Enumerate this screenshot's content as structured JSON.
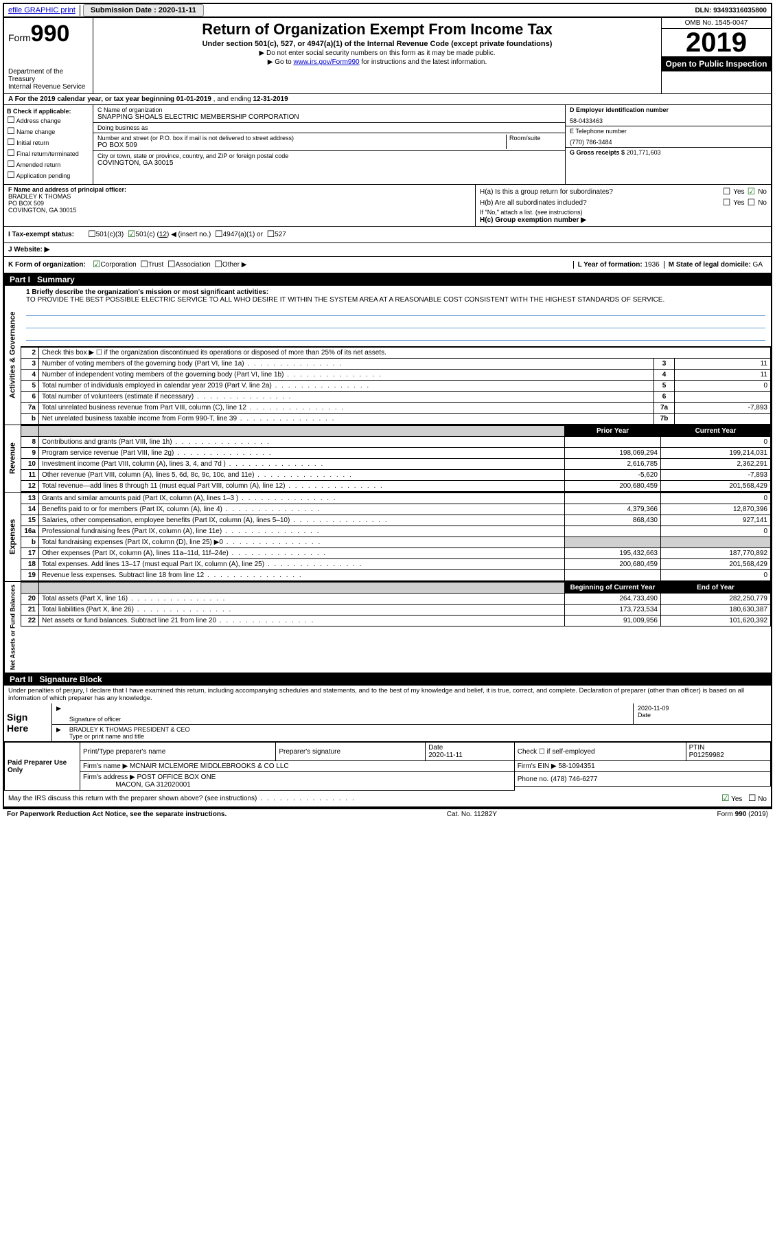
{
  "colors": {
    "link": "#0000cc",
    "rule_blue": "#6aa0d8",
    "shade": "#d0d0d0",
    "check_green": "#1a6b1a"
  },
  "topbar": {
    "efile": "efile GRAPHIC print",
    "submission_label": "Submission Date :",
    "submission_date": "2020-11-11",
    "dln_label": "DLN:",
    "dln": "93493316035800"
  },
  "header": {
    "form_label": "Form",
    "form_num": "990",
    "dept": "Department of the Treasury\nInternal Revenue Service",
    "title": "Return of Organization Exempt From Income Tax",
    "subtitle": "Under section 501(c), 527, or 4947(a)(1) of the Internal Revenue Code (except private foundations)",
    "note1": "▶ Do not enter social security numbers on this form as it may be made public.",
    "note2_pre": "▶ Go to ",
    "note2_link": "www.irs.gov/Form990",
    "note2_post": " for instructions and the latest information.",
    "omb": "OMB No. 1545-0047",
    "year": "2019",
    "inspection": "Open to Public Inspection"
  },
  "rowA": {
    "text_pre": "A For the 2019 calendar year, or tax year beginning ",
    "begin": "01-01-2019",
    "mid": " , and ending ",
    "end": "12-31-2019"
  },
  "colB": {
    "header": "B Check if applicable:",
    "items": [
      "Address change",
      "Name change",
      "Initial return",
      "Final return/terminated",
      "Amended return",
      "Application pending"
    ]
  },
  "colC": {
    "name_label": "C Name of organization",
    "name": "SNAPPING SHOALS ELECTRIC MEMBERSHIP CORPORATION",
    "dba_label": "Doing business as",
    "dba": "",
    "addr_label": "Number and street (or P.O. box if mail is not delivered to street address)",
    "room_label": "Room/suite",
    "addr": "PO BOX 509",
    "city_label": "City or town, state or province, country, and ZIP or foreign postal code",
    "city": "COVINGTON, GA  30015"
  },
  "colDE": {
    "d_label": "D Employer identification number",
    "d_val": "58-0433463",
    "e_label": "E Telephone number",
    "e_val": "(770) 786-3484",
    "g_label": "G Gross receipts $",
    "g_val": "201,771,603"
  },
  "rowFH": {
    "f_label": "F Name and address of principal officer:",
    "f_name": "BRADLEY K THOMAS",
    "f_addr1": "PO BOX 509",
    "f_addr2": "COVINGTON, GA  30015",
    "ha": "H(a)  Is this a group return for subordinates?",
    "hb": "H(b)  Are all subordinates included?",
    "hb_note": "If \"No,\" attach a list. (see instructions)",
    "hc": "H(c)  Group exemption number ▶",
    "yes": "Yes",
    "no": "No"
  },
  "rowI": {
    "label": "I Tax-exempt status:",
    "opt1": "501(c)(3)",
    "opt2_pre": "501(c) (",
    "opt2_num": "12",
    "opt2_post": ") ◀ (insert no.)",
    "opt3": "4947(a)(1) or",
    "opt4": "527"
  },
  "rowJ": {
    "label": "J  Website: ▶",
    "val": ""
  },
  "rowK": {
    "label": "K Form of organization:",
    "opts": [
      "Corporation",
      "Trust",
      "Association",
      "Other ▶"
    ],
    "l_label": "L Year of formation:",
    "l_val": "1936",
    "m_label": "M State of legal domicile:",
    "m_val": "GA"
  },
  "part1": {
    "tag": "Part I",
    "title": "Summary"
  },
  "mission": {
    "q": "1  Briefly describe the organization's mission or most significant activities:",
    "text": "TO PROVIDE THE BEST POSSIBLE ELECTRIC SERVICE TO ALL WHO DESIRE IT WITHIN THE SYSTEM AREA AT A REASONABLE COST CONSISTENT WITH THE HIGHEST STANDARDS OF SERVICE."
  },
  "gov_rows": [
    {
      "n": "2",
      "desc": "Check this box ▶ ☐  if the organization discontinued its operations or disposed of more than 25% of its net assets.",
      "box": "",
      "val": ""
    },
    {
      "n": "3",
      "desc": "Number of voting members of the governing body (Part VI, line 1a)",
      "box": "3",
      "val": "11"
    },
    {
      "n": "4",
      "desc": "Number of independent voting members of the governing body (Part VI, line 1b)",
      "box": "4",
      "val": "11"
    },
    {
      "n": "5",
      "desc": "Total number of individuals employed in calendar year 2019 (Part V, line 2a)",
      "box": "5",
      "val": "0"
    },
    {
      "n": "6",
      "desc": "Total number of volunteers (estimate if necessary)",
      "box": "6",
      "val": ""
    },
    {
      "n": "7a",
      "desc": "Total unrelated business revenue from Part VIII, column (C), line 12",
      "box": "7a",
      "val": "-7,893"
    },
    {
      "n": "b",
      "desc": "Net unrelated business taxable income from Form 990-T, line 39",
      "box": "7b",
      "val": ""
    }
  ],
  "two_col_header": {
    "prior": "Prior Year",
    "current": "Current Year"
  },
  "revenue_rows": [
    {
      "n": "8",
      "desc": "Contributions and grants (Part VIII, line 1h)",
      "py": "",
      "cy": "0"
    },
    {
      "n": "9",
      "desc": "Program service revenue (Part VIII, line 2g)",
      "py": "198,069,294",
      "cy": "199,214,031"
    },
    {
      "n": "10",
      "desc": "Investment income (Part VIII, column (A), lines 3, 4, and 7d )",
      "py": "2,616,785",
      "cy": "2,362,291"
    },
    {
      "n": "11",
      "desc": "Other revenue (Part VIII, column (A), lines 5, 6d, 8c, 9c, 10c, and 11e)",
      "py": "-5,620",
      "cy": "-7,893"
    },
    {
      "n": "12",
      "desc": "Total revenue—add lines 8 through 11 (must equal Part VIII, column (A), line 12)",
      "py": "200,680,459",
      "cy": "201,568,429"
    }
  ],
  "expense_rows": [
    {
      "n": "13",
      "desc": "Grants and similar amounts paid (Part IX, column (A), lines 1–3 )",
      "py": "",
      "cy": "0"
    },
    {
      "n": "14",
      "desc": "Benefits paid to or for members (Part IX, column (A), line 4)",
      "py": "4,379,366",
      "cy": "12,870,396"
    },
    {
      "n": "15",
      "desc": "Salaries, other compensation, employee benefits (Part IX, column (A), lines 5–10)",
      "py": "868,430",
      "cy": "927,141"
    },
    {
      "n": "16a",
      "desc": "Professional fundraising fees (Part IX, column (A), line 11e)",
      "py": "",
      "cy": "0"
    },
    {
      "n": "b",
      "desc": "Total fundraising expenses (Part IX, column (D), line 25) ▶0",
      "py": "SHADE",
      "cy": "SHADE"
    },
    {
      "n": "17",
      "desc": "Other expenses (Part IX, column (A), lines 11a–11d, 11f–24e)",
      "py": "195,432,663",
      "cy": "187,770,892"
    },
    {
      "n": "18",
      "desc": "Total expenses. Add lines 13–17 (must equal Part IX, column (A), line 25)",
      "py": "200,680,459",
      "cy": "201,568,429"
    },
    {
      "n": "19",
      "desc": "Revenue less expenses. Subtract line 18 from line 12",
      "py": "",
      "cy": "0"
    }
  ],
  "net_header": {
    "begin": "Beginning of Current Year",
    "end": "End of Year"
  },
  "net_rows": [
    {
      "n": "20",
      "desc": "Total assets (Part X, line 16)",
      "py": "264,733,490",
      "cy": "282,250,779"
    },
    {
      "n": "21",
      "desc": "Total liabilities (Part X, line 26)",
      "py": "173,723,534",
      "cy": "180,630,387"
    },
    {
      "n": "22",
      "desc": "Net assets or fund balances. Subtract line 21 from line 20",
      "py": "91,009,956",
      "cy": "101,620,392"
    }
  ],
  "vert": {
    "gov": "Activities & Governance",
    "rev": "Revenue",
    "exp": "Expenses",
    "net": "Net Assets or Fund Balances"
  },
  "part2": {
    "tag": "Part II",
    "title": "Signature Block"
  },
  "sig": {
    "penalty": "Under penalties of perjury, I declare that I have examined this return, including accompanying schedules and statements, and to the best of my knowledge and belief, it is true, correct, and complete. Declaration of preparer (other than officer) is based on all information of which preparer has any knowledge.",
    "sign_here": "Sign Here",
    "sig_officer": "Signature of officer",
    "date_label": "Date",
    "date": "2020-11-09",
    "officer_name": "BRADLEY K THOMAS  PRESIDENT & CEO",
    "officer_type": "Type or print name and title"
  },
  "prep": {
    "label": "Paid Preparer Use Only",
    "print_name_label": "Print/Type preparer's name",
    "print_name": "",
    "sig_label": "Preparer's signature",
    "date_label": "Date",
    "date": "2020-11-11",
    "check_label": "Check ☐ if self-employed",
    "ptin_label": "PTIN",
    "ptin": "P01259982",
    "firm_name_label": "Firm's name    ▶",
    "firm_name": "MCNAIR MCLEMORE MIDDLEBROOKS & CO LLC",
    "firm_ein_label": "Firm's EIN ▶",
    "firm_ein": "58-1094351",
    "firm_addr_label": "Firm's address ▶",
    "firm_addr1": "POST OFFICE BOX ONE",
    "firm_addr2": "MACON, GA  312020001",
    "phone_label": "Phone no.",
    "phone": "(478) 746-6277"
  },
  "discuss": {
    "q": "May the IRS discuss this return with the preparer shown above? (see instructions)",
    "yes": "Yes",
    "no": "No"
  },
  "footer": {
    "left": "For Paperwork Reduction Act Notice, see the separate instructions.",
    "mid": "Cat. No. 11282Y",
    "right": "Form 990 (2019)"
  }
}
